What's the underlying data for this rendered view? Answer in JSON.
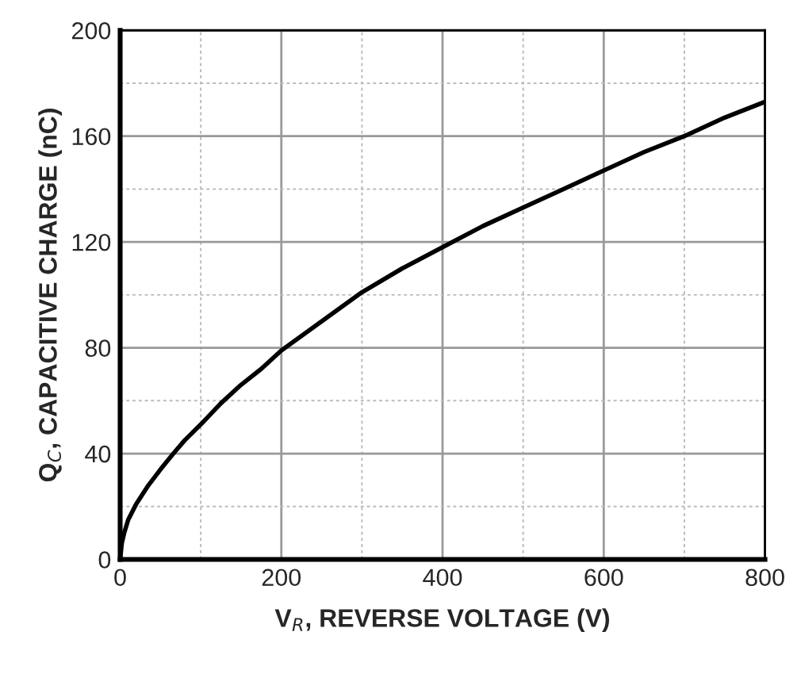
{
  "chart_data": {
    "type": "line",
    "xlabel": "V$_{R}$, REVERSE VOLTAGE (V)",
    "ylabel": "Q$_{C}$, CAPACITIVE CHARGE (nC)",
    "x": [
      0,
      2,
      5,
      10,
      20,
      35,
      50,
      66,
      80,
      100,
      125,
      150,
      175,
      200,
      250,
      300,
      350,
      400,
      450,
      500,
      550,
      600,
      650,
      700,
      750,
      800
    ],
    "series": [
      {
        "color": "#000000",
        "values": [
          0,
          6,
          10,
          15,
          21,
          28,
          34,
          40,
          45,
          51,
          59,
          66,
          72,
          79,
          90,
          101,
          110,
          118,
          126,
          133,
          140,
          147,
          154,
          160,
          167,
          173
        ]
      }
    ],
    "xlim": [
      0,
      800
    ],
    "ylim": [
      0,
      200
    ],
    "xticks": [
      0,
      {
        "value": 100,
        "label": null
      },
      200,
      {
        "value": 300,
        "label": null
      },
      400,
      {
        "value": 500,
        "label": null
      },
      600,
      {
        "value": 700,
        "label": null
      },
      800
    ],
    "yticks": [
      0,
      {
        "value": 20,
        "label": null
      },
      40,
      {
        "value": 60,
        "label": null
      },
      80,
      {
        "value": 100,
        "label": null
      },
      120,
      {
        "value": 140,
        "label": null
      },
      160,
      {
        "value": 180,
        "label": null
      },
      200
    ],
    "grid": true,
    "marker": "none",
    "line_style": "solid",
    "legend": false
  }
}
